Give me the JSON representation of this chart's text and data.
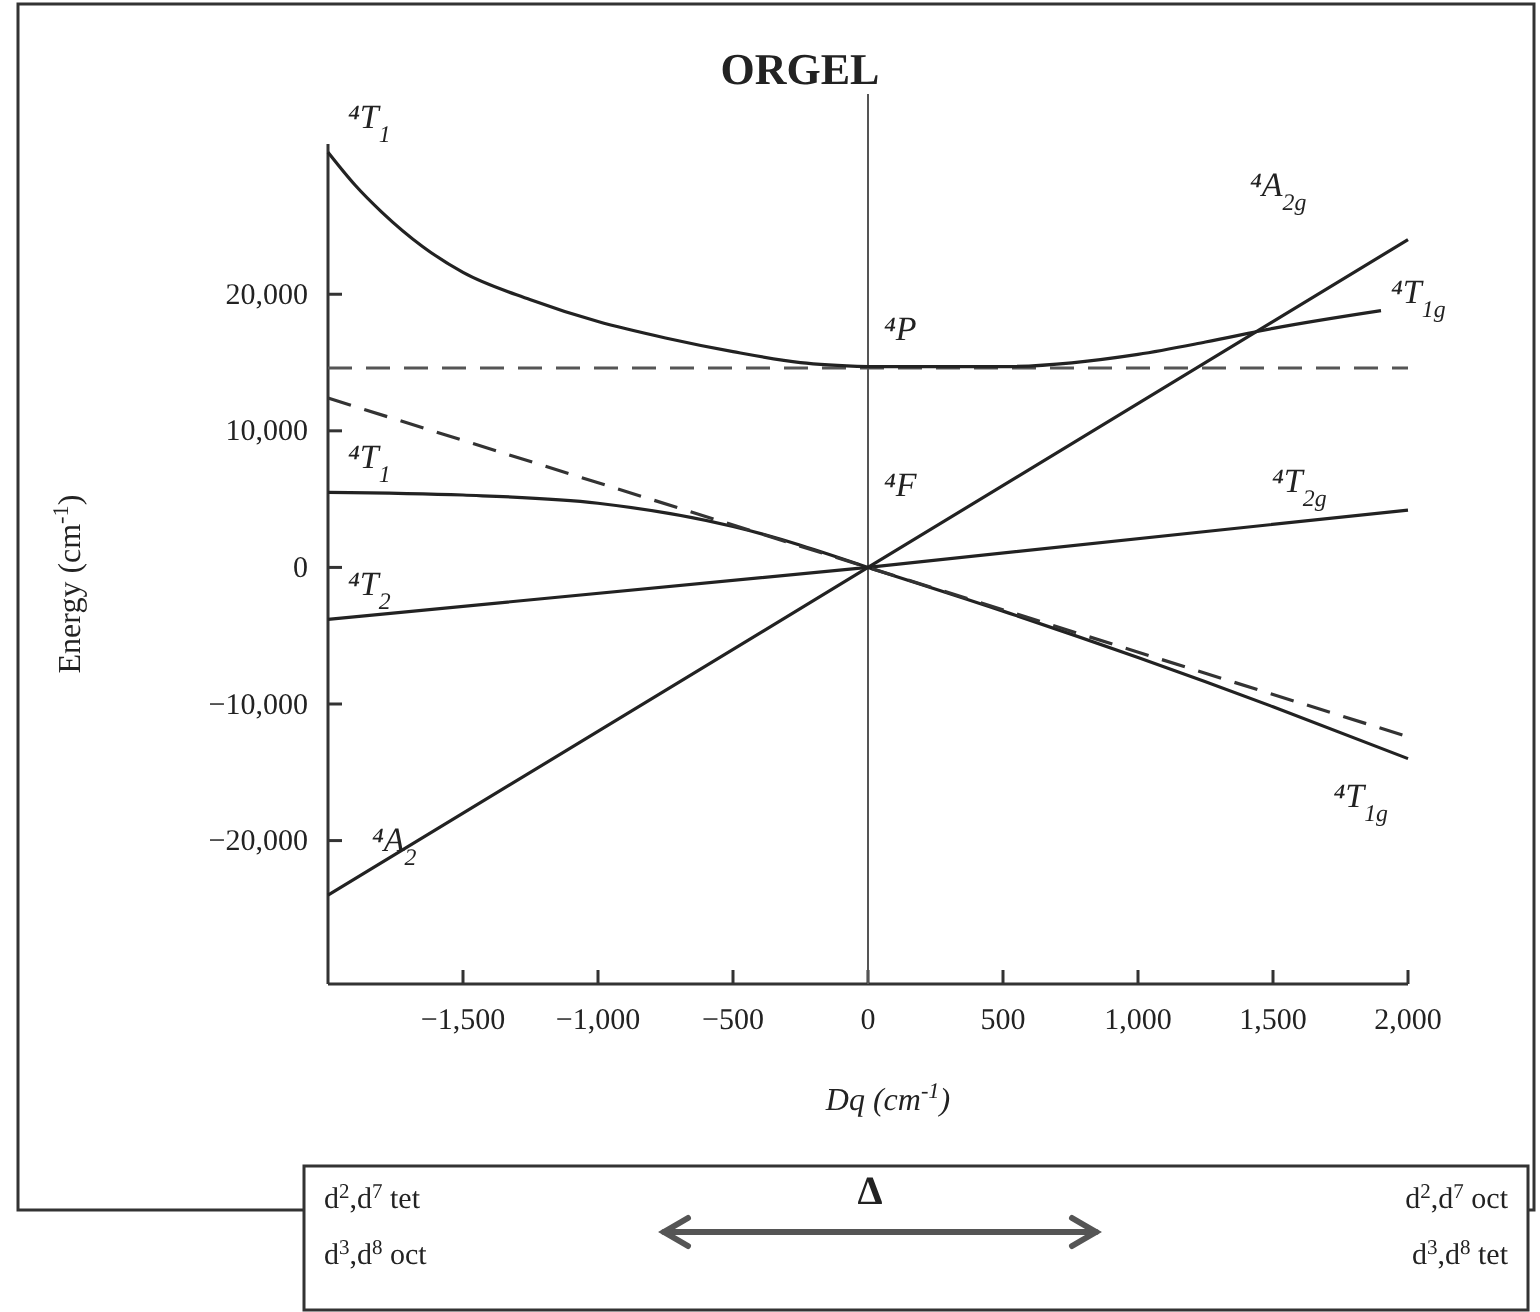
{
  "chart_data": {
    "type": "line",
    "title": "ORGEL",
    "xlabel": "Dq (cm$^{-1}$)",
    "ylabel": "Energy (cm$^{-1}$)",
    "xlim": [
      -2000,
      2000
    ],
    "ylim": [
      -30500,
      31000
    ],
    "xticks": [
      {
        "value": -1500,
        "label": "−1,500"
      },
      {
        "value": -1000,
        "label": "−1,000"
      },
      {
        "value": -500,
        "label": "−500"
      },
      0,
      500,
      {
        "value": 1000,
        "label": "1,000"
      },
      {
        "value": 1500,
        "label": "1,500"
      },
      {
        "value": 2000,
        "label": "2,000"
      }
    ],
    "yticks": [
      {
        "value": -20000,
        "label": "−20,000"
      },
      {
        "value": -10000,
        "label": "−10,000"
      },
      0,
      {
        "value": 10000,
        "label": "10,000"
      },
      {
        "value": 20000,
        "label": "20,000"
      }
    ],
    "grid": false,
    "marker": "none",
    "series": [
      {
        "name": "⁴T$_{1}$",
        "color": "#222222",
        "x": [
          -2000,
          -1900,
          -1800,
          -1650,
          -1500,
          -1250,
          -1000,
          -750,
          -500,
          -250,
          0
        ],
        "values": [
          30400,
          28000,
          26000,
          23500,
          21600,
          19600,
          18000,
          16800,
          15800,
          15000,
          14700
        ]
      },
      {
        "name": "⁴T$_{1g}$",
        "color": "#222222",
        "x": [
          0,
          500,
          1000,
          1250,
          1500,
          1900
        ],
        "values": [
          14700,
          14700,
          15600,
          16500,
          17500,
          18800
        ]
      },
      {
        "name": "⁴T$_{1}$",
        "color": "#222222",
        "x": [
          -2000,
          -1500,
          -1000,
          -500,
          0
        ],
        "values": [
          5500,
          5300,
          4700,
          3000,
          0
        ]
      },
      {
        "name": "⁴T$_{1g}$",
        "color": "#222222",
        "x": [
          0,
          500,
          1000,
          1500,
          2000
        ],
        "values": [
          0,
          -3200,
          -6600,
          -10200,
          -14000
        ]
      },
      {
        "name": "⁴T$_{2}$",
        "color": "#222222",
        "x": [
          -2000,
          0,
          2000
        ],
        "values": [
          -3800,
          0,
          4200
        ]
      },
      {
        "name": "⁴A$_{2}$",
        "color": "#222222",
        "x": [
          -2000,
          0,
          2000
        ],
        "values": [
          -24000,
          0,
          24000
        ]
      },
      {
        "color": "#333333",
        "line_style": "dashed",
        "x": [
          -2000,
          2000
        ],
        "values": [
          12400,
          -12400
        ]
      }
    ],
    "ref_lines": [
      {
        "axis": "y",
        "value": 14600,
        "color": "#555555",
        "line_style": "dashed"
      },
      {
        "axis": "x",
        "value": 0,
        "color": "#555555",
        "line_style": "solid"
      }
    ],
    "annotations": [
      "⁴P",
      "⁴F",
      "⁴T$_{2g}$",
      "⁴A$_{2g}$",
      "d$^{2}$,d$^{7}$ tet",
      "d$^{3}$,d$^{8}$ oct",
      "Δ",
      "d$^{2}$,d$^{7}$ oct",
      "d$^{3}$,d$^{8}$ tet"
    ]
  }
}
